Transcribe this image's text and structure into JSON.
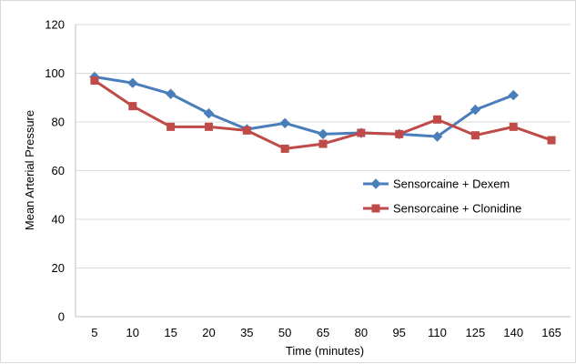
{
  "chart_data": {
    "type": "line",
    "title": "",
    "xlabel": "Time (minutes)",
    "ylabel": "Mean Arterial Pressure",
    "categories": [
      "5",
      "10",
      "15",
      "20",
      "35",
      "50",
      "65",
      "80",
      "95",
      "110",
      "125",
      "140",
      "165"
    ],
    "ylim": [
      0,
      120
    ],
    "yticks": [
      "0",
      "20",
      "40",
      "60",
      "80",
      "100",
      "120"
    ],
    "grid": "horizontal",
    "legend_position": "right",
    "series": [
      {
        "name": "Sensorcaine + Dexem",
        "color": "#4a7ebb",
        "marker": "diamond",
        "values": [
          98.5,
          96.0,
          91.5,
          83.5,
          77.0,
          79.5,
          75.0,
          75.5,
          75.0,
          74.0,
          85.0,
          91.0,
          null
        ]
      },
      {
        "name": "Sensorcaine + Clonidine",
        "color": "#be4b48",
        "marker": "square",
        "values": [
          97.0,
          86.5,
          78.0,
          78.0,
          76.5,
          69.0,
          71.0,
          75.5,
          75.0,
          81.0,
          74.5,
          78.0,
          72.5
        ]
      }
    ]
  }
}
